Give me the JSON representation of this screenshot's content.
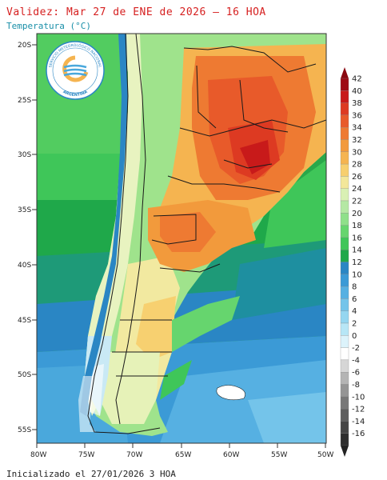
{
  "header": {
    "title": "Validez: Mar 27 de ENE de 2026 – 16 HOA",
    "subtitle": "Temperatura (°C)"
  },
  "footer": {
    "init_text": "Inicializado el 27/01/2026 3 HOA"
  },
  "logo": {
    "org_text": "SERVICIO METEOROLÓGICO NACIONAL",
    "country_text": "ARGENTINA"
  },
  "axes": {
    "lat_labels": [
      "20S",
      "25S",
      "30S",
      "35S",
      "40S",
      "45S",
      "50S",
      "55S"
    ],
    "lon_labels": [
      "80W",
      "75W",
      "70W",
      "65W",
      "60W",
      "55W",
      "50W"
    ]
  },
  "colorbar": {
    "labels": [
      "42",
      "40",
      "38",
      "36",
      "34",
      "32",
      "30",
      "28",
      "26",
      "24",
      "22",
      "20",
      "18",
      "16",
      "14",
      "12",
      "10",
      "8",
      "6",
      "4",
      "2",
      "0",
      "-2",
      "-4",
      "-6",
      "-8",
      "-10",
      "-12",
      "-14",
      "-16"
    ],
    "colors": [
      "#9e0a14",
      "#c81a1a",
      "#dd3a22",
      "#e85a2a",
      "#ee7a32",
      "#f29a3c",
      "#f5b450",
      "#f7cf6e",
      "#f3e79a",
      "#d9f0b4",
      "#b5e8a4",
      "#8fe08a",
      "#66d56e",
      "#3fc659",
      "#1fa84a",
      "#2a86c4",
      "#3b9ad6",
      "#56b0e2",
      "#74c4ea",
      "#95d6f0",
      "#b7e6f6",
      "#dcf3fb",
      "#ffffff",
      "#d6d6d6",
      "#b4b4b4",
      "#959595",
      "#787878",
      "#5e5e5e",
      "#454545",
      "#2e2e2e"
    ],
    "top_arrow_color": "#8a0810",
    "bottom_arrow_color": "#222222"
  },
  "colors": {
    "ocean_cold": "#2b86c4",
    "ocean_mid": "#3fc659",
    "land_hot": "#ee7a32",
    "land_very_hot": "#dd3a22",
    "border_color": "#1a1a1a"
  }
}
